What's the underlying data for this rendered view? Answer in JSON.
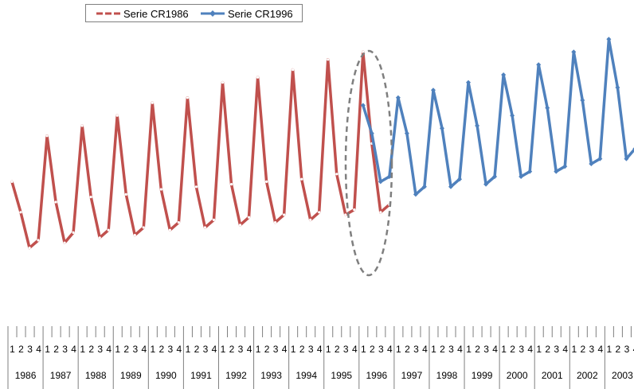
{
  "chart_data": {
    "type": "line",
    "title": "",
    "xlabel": "",
    "ylabel": "",
    "colors": {
      "serie_1986": "#c0504d",
      "serie_1996": "#4f81bd",
      "ellipse": "#7f7f7f"
    },
    "legend_position": "top-left",
    "grid": false,
    "quarter_labels": [
      "1",
      "2",
      "3",
      "4"
    ],
    "years": [
      "1986",
      "1987",
      "1988",
      "1989",
      "1990",
      "1991",
      "1992",
      "1993",
      "1994",
      "1995",
      "1996",
      "1997",
      "1998",
      "1999",
      "2000",
      "2001",
      "2002",
      "2003"
    ],
    "ylim": [
      0,
      100
    ],
    "series": [
      {
        "name": "Serie CR1986",
        "style": "dashed-marker",
        "start_index": 0,
        "values": [
          38,
          26,
          12,
          15,
          56,
          30,
          14,
          18,
          60,
          32,
          16,
          19,
          64,
          33,
          17,
          20,
          69,
          35,
          19,
          22,
          71,
          36,
          20,
          23,
          77,
          37,
          21,
          24,
          79,
          38,
          22,
          25,
          82,
          39,
          23,
          26,
          86,
          41,
          25,
          27,
          89,
          53,
          26,
          29
        ]
      },
      {
        "name": "Serie CR1996",
        "style": "solid-diamond",
        "start_index": 40,
        "values": [
          68,
          57,
          38,
          40,
          71,
          57,
          33,
          36,
          74,
          59,
          36,
          39,
          77,
          60,
          37,
          40,
          80,
          64,
          40,
          42,
          84,
          67,
          42,
          44,
          89,
          70,
          45,
          47,
          94,
          75,
          47,
          51
        ]
      }
    ]
  }
}
